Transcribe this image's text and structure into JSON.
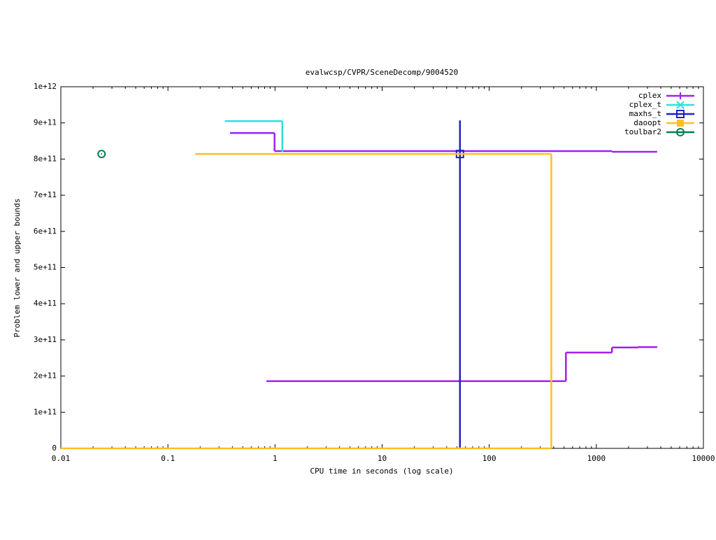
{
  "chart_data": {
    "type": "step",
    "title": "evalwcsp/CVPR/SceneDecomp/9004520",
    "x_label": "CPU time in seconds (log scale)",
    "y_label": "Problem lower and upper bounds",
    "xscale": "log",
    "xlim": [
      0.01,
      10000
    ],
    "xticks": [
      0.01,
      0.1,
      1,
      10,
      100,
      1000,
      10000
    ],
    "ylim": [
      0,
      1000000000000
    ],
    "yticks": [
      0,
      {
        "value": 100000000000,
        "label": "1e+11"
      },
      {
        "value": 200000000000,
        "label": "2e+11"
      },
      {
        "value": 300000000000,
        "label": "3e+11"
      },
      {
        "value": 400000000000,
        "label": "4e+11"
      },
      {
        "value": 500000000000,
        "label": "5e+11"
      },
      {
        "value": 600000000000,
        "label": "6e+11"
      },
      {
        "value": 700000000000,
        "label": "7e+11"
      },
      {
        "value": 800000000000,
        "label": "8e+11"
      },
      {
        "value": 900000000000,
        "label": "9e+11"
      },
      {
        "value": 1000000000000,
        "label": "1e+12"
      }
    ],
    "legend": "top-right",
    "series": [
      {
        "name": "cplex",
        "color": "#a020f0",
        "marker": "plus",
        "lines": [
          {
            "x": [
              0.38,
              0.99,
              1400,
              3700
            ],
            "values": [
              872000000000,
              822000000000,
              820000000000,
              820000000000
            ]
          },
          {
            "x": [
              0.83,
              520,
              1400,
              2450,
              3700
            ],
            "values": [
              186000000000,
              265000000000,
              279000000000,
              280000000000,
              280000000000
            ]
          }
        ],
        "points": []
      },
      {
        "name": "cplex_t",
        "color": "#2ee0e0",
        "marker": "cross",
        "lines": [
          {
            "x": [
              0.34,
              1.17
            ],
            "values": [
              905000000000,
              820000000000
            ]
          }
        ],
        "points": []
      },
      {
        "name": "maxhs_t",
        "color": "#2020c0",
        "marker": "square",
        "lines": [
          {
            "x": [
              53.3,
              53.3
            ],
            "values": [
              907000000000,
              0
            ]
          }
        ],
        "points": [
          {
            "x": 53.3,
            "value": 814000000000
          }
        ]
      },
      {
        "name": "daoopt",
        "color": "#ffbf20",
        "marker": "filled-square",
        "lines": [
          {
            "x": [
              0.18,
              380
            ],
            "values": [
              814000000000,
              0
            ]
          },
          {
            "x": [
              0.01,
              380
            ],
            "values": [
              0,
              0
            ]
          }
        ],
        "points": []
      },
      {
        "name": "toulbar2",
        "color": "#008050",
        "marker": "circle",
        "lines": [],
        "points": [
          {
            "x": 0.024,
            "value": 814000000000
          }
        ]
      }
    ]
  }
}
